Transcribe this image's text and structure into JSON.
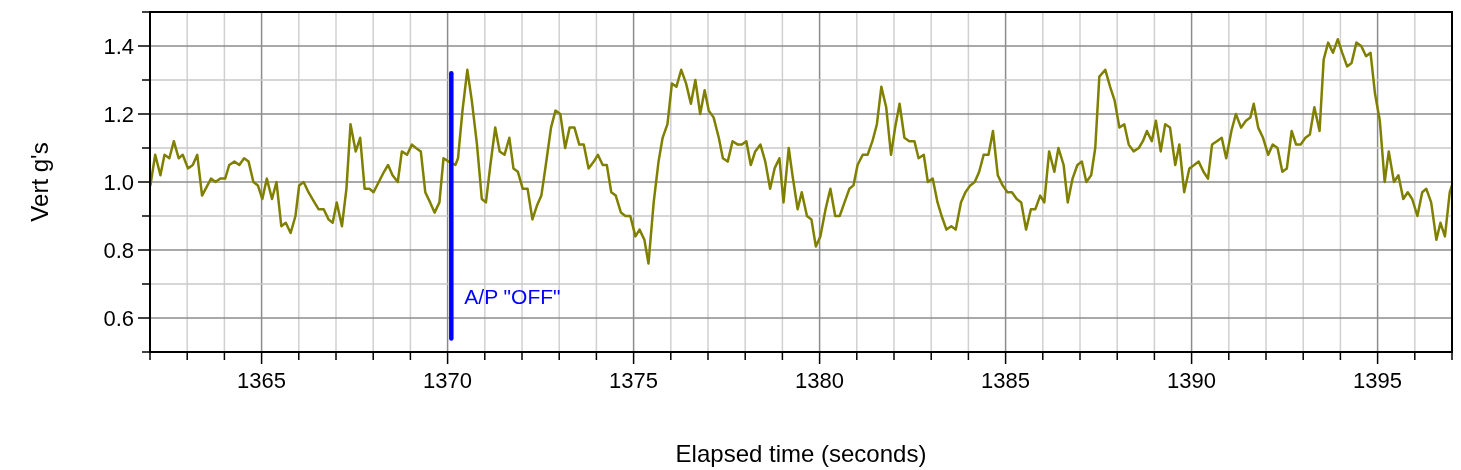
{
  "chart_data": {
    "type": "line",
    "xlabel": "Elapsed time (seconds)",
    "ylabel": "Vert g's",
    "xlim": [
      1362,
      1397
    ],
    "ylim": [
      0.5,
      1.5
    ],
    "xticks": [
      {
        "value": 1362,
        "label": null
      },
      {
        "value": 1363,
        "label": null
      },
      {
        "value": 1364,
        "label": null
      },
      1365,
      {
        "value": 1366,
        "label": null
      },
      {
        "value": 1367,
        "label": null
      },
      {
        "value": 1368,
        "label": null
      },
      {
        "value": 1369,
        "label": null
      },
      1370,
      {
        "value": 1371,
        "label": null
      },
      {
        "value": 1372,
        "label": null
      },
      {
        "value": 1373,
        "label": null
      },
      {
        "value": 1374,
        "label": null
      },
      1375,
      {
        "value": 1376,
        "label": null
      },
      {
        "value": 1377,
        "label": null
      },
      {
        "value": 1378,
        "label": null
      },
      {
        "value": 1379,
        "label": null
      },
      1380,
      {
        "value": 1381,
        "label": null
      },
      {
        "value": 1382,
        "label": null
      },
      {
        "value": 1383,
        "label": null
      },
      {
        "value": 1384,
        "label": null
      },
      1385,
      {
        "value": 1386,
        "label": null
      },
      {
        "value": 1387,
        "label": null
      },
      {
        "value": 1388,
        "label": null
      },
      {
        "value": 1389,
        "label": null
      },
      1390,
      {
        "value": 1391,
        "label": null
      },
      {
        "value": 1392,
        "label": null
      },
      {
        "value": 1393,
        "label": null
      },
      {
        "value": 1394,
        "label": null
      },
      1395,
      {
        "value": 1396,
        "label": null
      },
      {
        "value": 1397,
        "label": null
      }
    ],
    "yticks": [
      {
        "value": 0.5,
        "label": null
      },
      {
        "value": 0.6,
        "label": "0.6"
      },
      {
        "value": 0.7,
        "label": null
      },
      {
        "value": 0.8,
        "label": "0.8"
      },
      {
        "value": 0.9,
        "label": null
      },
      {
        "value": 1.0,
        "label": "1.0"
      },
      {
        "value": 1.1,
        "label": null
      },
      {
        "value": 1.2,
        "label": "1.2"
      },
      {
        "value": 1.3,
        "label": null
      },
      {
        "value": 1.4,
        "label": "1.4"
      },
      {
        "value": 1.5,
        "label": null
      }
    ],
    "grid": true,
    "marker": "none",
    "line_style": "solid",
    "ref_lines": [
      {
        "axis": "x",
        "value": 1370.1,
        "label": "A/P \"OFF\"",
        "color": "#0000ff"
      }
    ],
    "series": [
      {
        "color": "#808000",
        "x": [
          1362.01,
          1362.14,
          1362.28,
          1362.39,
          1362.52,
          1362.64,
          1362.77,
          1362.88,
          1363.02,
          1363.15,
          1363.27,
          1363.4,
          1363.64,
          1363.76,
          1363.89,
          1364.02,
          1364.13,
          1364.27,
          1364.4,
          1364.53,
          1364.65,
          1364.78,
          1364.9,
          1365.02,
          1365.14,
          1365.28,
          1365.4,
          1365.53,
          1365.65,
          1365.78,
          1365.91,
          1366.01,
          1366.13,
          1366.26,
          1366.42,
          1366.53,
          1366.67,
          1366.8,
          1366.91,
          1367.02,
          1367.16,
          1367.28,
          1367.39,
          1367.53,
          1367.65,
          1367.77,
          1367.9,
          1368.01,
          1368.15,
          1368.29,
          1368.4,
          1368.52,
          1368.66,
          1368.77,
          1368.91,
          1369.04,
          1369.15,
          1369.28,
          1369.4,
          1369.53,
          1369.65,
          1369.78,
          1369.89,
          1370.03,
          1370.21,
          1370.28,
          1370.4,
          1370.53,
          1370.65,
          1370.79,
          1370.92,
          1371.03,
          1371.15,
          1371.28,
          1371.4,
          1371.53,
          1371.66,
          1371.77,
          1371.89,
          1372.02,
          1372.15,
          1372.28,
          1372.4,
          1372.52,
          1372.64,
          1372.78,
          1372.9,
          1373.03,
          1373.16,
          1373.28,
          1373.41,
          1373.54,
          1373.66,
          1373.79,
          1373.93,
          1374.04,
          1374.17,
          1374.28,
          1374.4,
          1374.52,
          1374.66,
          1374.78,
          1374.91,
          1375.05,
          1375.16,
          1375.29,
          1375.4,
          1375.54,
          1375.67,
          1375.78,
          1375.91,
          1376.03,
          1376.15,
          1376.28,
          1376.41,
          1376.54,
          1376.66,
          1376.79,
          1376.91,
          1377.02,
          1377.15,
          1377.29,
          1377.4,
          1377.53,
          1377.66,
          1377.8,
          1377.91,
          1378.03,
          1378.15,
          1378.27,
          1378.41,
          1378.54,
          1378.67,
          1378.79,
          1378.92,
          1379.03,
          1379.17,
          1379.27,
          1379.41,
          1379.52,
          1379.66,
          1379.78,
          1379.9,
          1380.02,
          1380.16,
          1380.29,
          1380.42,
          1380.54,
          1380.67,
          1380.8,
          1380.91,
          1381.02,
          1381.16,
          1381.29,
          1381.42,
          1381.54,
          1381.66,
          1381.79,
          1381.92,
          1382.03,
          1382.15,
          1382.28,
          1382.41,
          1382.55,
          1382.66,
          1382.8,
          1382.91,
          1383.04,
          1383.17,
          1383.28,
          1383.41,
          1383.54,
          1383.66,
          1383.8,
          1383.92,
          1384.05,
          1384.17,
          1384.29,
          1384.41,
          1384.54,
          1384.66,
          1384.79,
          1384.92,
          1385.05,
          1385.17,
          1385.3,
          1385.42,
          1385.55,
          1385.68,
          1385.8,
          1385.93,
          1386.04,
          1386.17,
          1386.31,
          1386.42,
          1386.56,
          1386.67,
          1386.8,
          1386.93,
          1387.05,
          1387.17,
          1387.3,
          1387.41,
          1387.52,
          1387.68,
          1387.81,
          1387.93,
          1388.06,
          1388.19,
          1388.31,
          1388.44,
          1388.58,
          1388.69,
          1388.8,
          1388.93,
          1389.04,
          1389.17,
          1389.29,
          1389.42,
          1389.56,
          1389.67,
          1389.8,
          1389.94,
          1390.07,
          1390.19,
          1390.32,
          1390.44,
          1390.55,
          1390.68,
          1390.81,
          1390.93,
          1391.07,
          1391.19,
          1391.33,
          1391.46,
          1391.58,
          1391.67,
          1391.79,
          1391.92,
          1392.06,
          1392.18,
          1392.31,
          1392.44,
          1392.56,
          1392.69,
          1392.81,
          1392.93,
          1393.06,
          1393.18,
          1393.3,
          1393.44,
          1393.55,
          1393.67,
          1393.8,
          1393.93,
          1394.05,
          1394.18,
          1394.3,
          1394.43,
          1394.56,
          1394.69,
          1394.81,
          1394.93,
          1395.06,
          1395.19,
          1395.3,
          1395.44,
          1395.56,
          1395.69,
          1395.81,
          1395.93,
          1396.07,
          1396.2,
          1396.31,
          1396.44,
          1396.58,
          1396.69,
          1396.81,
          1396.94,
          1397.0
        ],
        "values": [
          0.99,
          1.08,
          1.02,
          1.08,
          1.07,
          1.12,
          1.07,
          1.08,
          1.04,
          1.05,
          1.08,
          0.96,
          1.01,
          1.0,
          1.01,
          1.01,
          1.05,
          1.06,
          1.05,
          1.07,
          1.06,
          1.0,
          0.99,
          0.95,
          1.01,
          0.95,
          1.0,
          0.87,
          0.88,
          0.85,
          0.9,
          0.99,
          1.0,
          0.97,
          0.94,
          0.92,
          0.92,
          0.89,
          0.88,
          0.94,
          0.87,
          0.98,
          1.17,
          1.09,
          1.13,
          0.98,
          0.98,
          0.97,
          1.0,
          1.03,
          1.05,
          1.02,
          1.0,
          1.09,
          1.08,
          1.11,
          1.1,
          1.09,
          0.97,
          0.94,
          0.91,
          0.94,
          1.07,
          1.06,
          1.05,
          1.07,
          1.21,
          1.33,
          1.24,
          1.11,
          0.95,
          0.94,
          1.05,
          1.16,
          1.09,
          1.08,
          1.13,
          1.04,
          1.03,
          0.98,
          0.98,
          0.89,
          0.93,
          0.96,
          1.05,
          1.16,
          1.21,
          1.2,
          1.1,
          1.16,
          1.16,
          1.11,
          1.11,
          1.04,
          1.06,
          1.08,
          1.05,
          1.05,
          0.97,
          0.96,
          0.91,
          0.9,
          0.9,
          0.84,
          0.86,
          0.83,
          0.76,
          0.94,
          1.06,
          1.13,
          1.17,
          1.29,
          1.28,
          1.33,
          1.29,
          1.23,
          1.3,
          1.2,
          1.27,
          1.21,
          1.19,
          1.13,
          1.07,
          1.06,
          1.12,
          1.11,
          1.11,
          1.12,
          1.05,
          1.09,
          1.11,
          1.06,
          0.98,
          1.04,
          1.07,
          0.94,
          1.1,
          1.02,
          0.92,
          0.97,
          0.9,
          0.89,
          0.81,
          0.84,
          0.92,
          0.98,
          0.9,
          0.9,
          0.94,
          0.98,
          0.99,
          1.05,
          1.08,
          1.08,
          1.12,
          1.17,
          1.28,
          1.22,
          1.08,
          1.16,
          1.23,
          1.13,
          1.12,
          1.12,
          1.07,
          1.08,
          1.0,
          1.01,
          0.94,
          0.9,
          0.86,
          0.87,
          0.86,
          0.94,
          0.97,
          0.99,
          1.0,
          1.03,
          1.08,
          1.08,
          1.15,
          1.02,
          0.99,
          0.97,
          0.97,
          0.95,
          0.94,
          0.86,
          0.92,
          0.92,
          0.96,
          0.94,
          1.09,
          1.03,
          1.1,
          1.05,
          0.94,
          1.01,
          1.05,
          1.06,
          1.0,
          1.02,
          1.1,
          1.31,
          1.33,
          1.28,
          1.24,
          1.16,
          1.17,
          1.11,
          1.09,
          1.1,
          1.12,
          1.15,
          1.12,
          1.18,
          1.09,
          1.17,
          1.16,
          1.05,
          1.11,
          0.97,
          1.04,
          1.05,
          1.06,
          1.03,
          1.01,
          1.11,
          1.12,
          1.13,
          1.07,
          1.15,
          1.2,
          1.16,
          1.18,
          1.19,
          1.23,
          1.16,
          1.13,
          1.08,
          1.11,
          1.1,
          1.03,
          1.04,
          1.15,
          1.11,
          1.11,
          1.13,
          1.14,
          1.22,
          1.15,
          1.36,
          1.41,
          1.38,
          1.42,
          1.38,
          1.34,
          1.35,
          1.41,
          1.4,
          1.37,
          1.38,
          1.26,
          1.18,
          1.0,
          1.09,
          1.0,
          1.02,
          0.95,
          0.97,
          0.95,
          0.9,
          0.97,
          0.98,
          0.94,
          0.83,
          0.88,
          0.84,
          0.97,
          0.99
        ]
      }
    ]
  }
}
